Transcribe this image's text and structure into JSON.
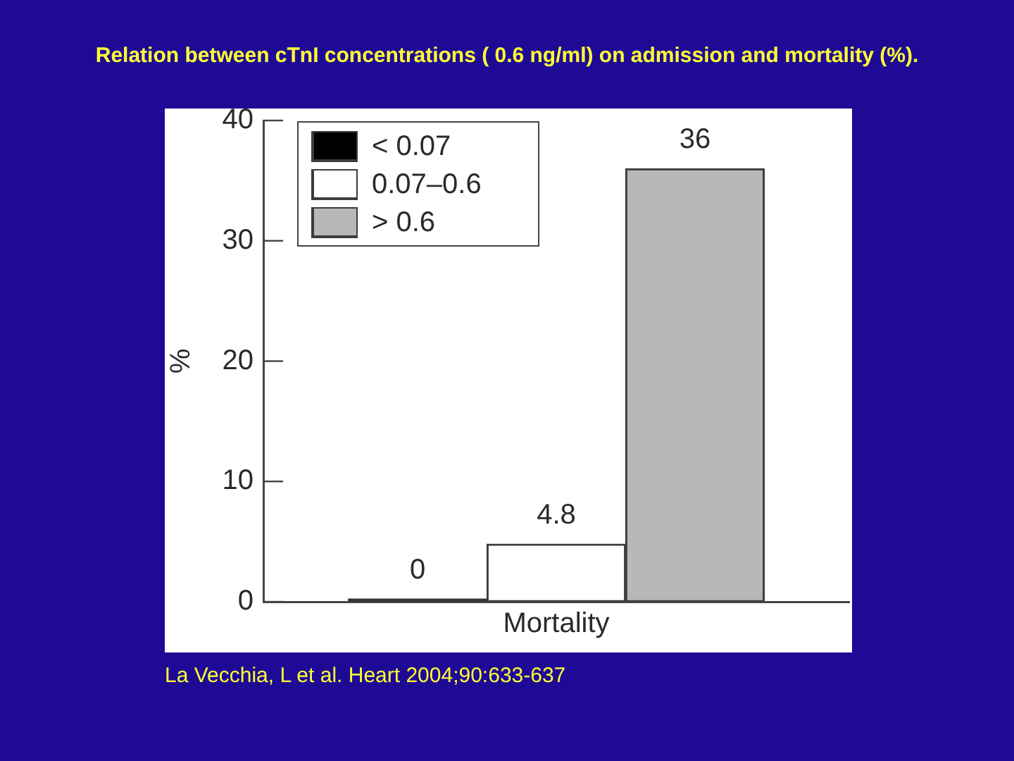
{
  "chart_data": {
    "type": "bar",
    "title": "Relation between cTnI concentrations ( 0.6 ng/ml) on admission and mortality (%).",
    "ylabel": "%",
    "categories": [
      null,
      "Mortality",
      null
    ],
    "series": [
      {
        "name": "< 0.07",
        "color": "#000000",
        "values": [
          0,
          null,
          null
        ]
      },
      {
        "name": "0.07–0.6",
        "color": "#ffffff",
        "values": [
          null,
          4.8,
          null
        ]
      },
      {
        "name": "> 0.6",
        "color": "#b8b8b8",
        "values": [
          null,
          null,
          36
        ]
      }
    ],
    "ylim": [
      0,
      40
    ],
    "yticks": [
      0,
      10,
      20,
      30,
      40
    ],
    "grid": false,
    "legend": "top left",
    "data_labels": true,
    "annotations": [
      "La Vecchia, L et al. Heart 2004;90:633-637"
    ]
  }
}
